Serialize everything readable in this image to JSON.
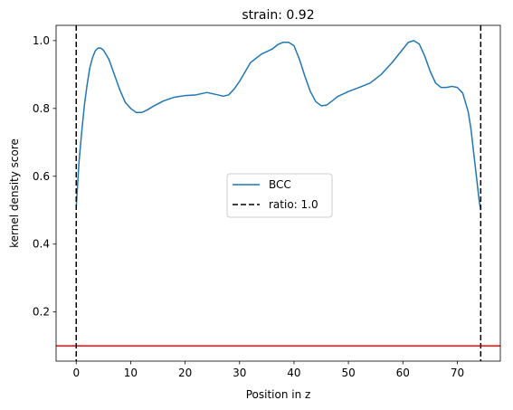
{
  "chart_data": {
    "type": "line",
    "title": "strain: 0.92",
    "xlabel": "Position in z",
    "ylabel": "kernel density score",
    "xlim": [
      -3.7,
      77.9
    ],
    "ylim": [
      0.055,
      1.045
    ],
    "xticks": [
      0,
      10,
      20,
      30,
      40,
      50,
      60,
      70
    ],
    "yticks": [
      0.2,
      0.4,
      0.6,
      0.8,
      1.0
    ],
    "xtick_labels": [
      "0",
      "10",
      "20",
      "30",
      "40",
      "50",
      "60",
      "70"
    ],
    "ytick_labels": [
      "0.2",
      "0.4",
      "0.6",
      "0.8",
      "1.0"
    ],
    "grid": false,
    "legend_position": "center",
    "series": [
      {
        "name": "BCC",
        "color": "#1f77b4",
        "style": "solid",
        "x": [
          0.0,
          0.5,
          1.0,
          1.5,
          2.0,
          2.5,
          3.0,
          3.5,
          4.0,
          4.5,
          5.0,
          6.0,
          7.0,
          8.0,
          9.0,
          10.0,
          11.0,
          12.0,
          13.0,
          14.0,
          16.0,
          18.0,
          20.0,
          22.0,
          24.0,
          26.0,
          27.0,
          28.0,
          29.0,
          30.0,
          32.0,
          34.0,
          36.0,
          37.0,
          38.0,
          39.0,
          40.0,
          41.0,
          42.0,
          43.0,
          44.0,
          45.0,
          46.0,
          47.0,
          48.0,
          50.0,
          52.0,
          54.0,
          56.0,
          58.0,
          60.0,
          61.0,
          62.0,
          63.0,
          64.0,
          65.0,
          66.0,
          67.0,
          68.0,
          69.0,
          70.0,
          71.0,
          72.0,
          72.5,
          73.0,
          73.5,
          74.0,
          74.3
        ],
        "y": [
          0.51,
          0.64,
          0.73,
          0.81,
          0.87,
          0.92,
          0.95,
          0.97,
          0.978,
          0.978,
          0.972,
          0.945,
          0.9,
          0.855,
          0.818,
          0.8,
          0.788,
          0.788,
          0.795,
          0.805,
          0.822,
          0.833,
          0.838,
          0.84,
          0.847,
          0.84,
          0.836,
          0.84,
          0.857,
          0.88,
          0.935,
          0.96,
          0.975,
          0.988,
          0.995,
          0.995,
          0.985,
          0.945,
          0.895,
          0.85,
          0.82,
          0.808,
          0.81,
          0.822,
          0.835,
          0.85,
          0.862,
          0.875,
          0.9,
          0.935,
          0.975,
          0.995,
          1.0,
          0.99,
          0.955,
          0.91,
          0.875,
          0.862,
          0.862,
          0.865,
          0.862,
          0.845,
          0.79,
          0.74,
          0.67,
          0.6,
          0.53,
          0.5
        ]
      }
    ],
    "vlines": [
      {
        "name": "ratio: 1.0",
        "color": "#000000",
        "style": "dashed",
        "x": [
          0,
          74.3
        ]
      }
    ],
    "hlines": [
      {
        "color": "#ff0000",
        "style": "solid",
        "y": 0.1
      }
    ]
  }
}
